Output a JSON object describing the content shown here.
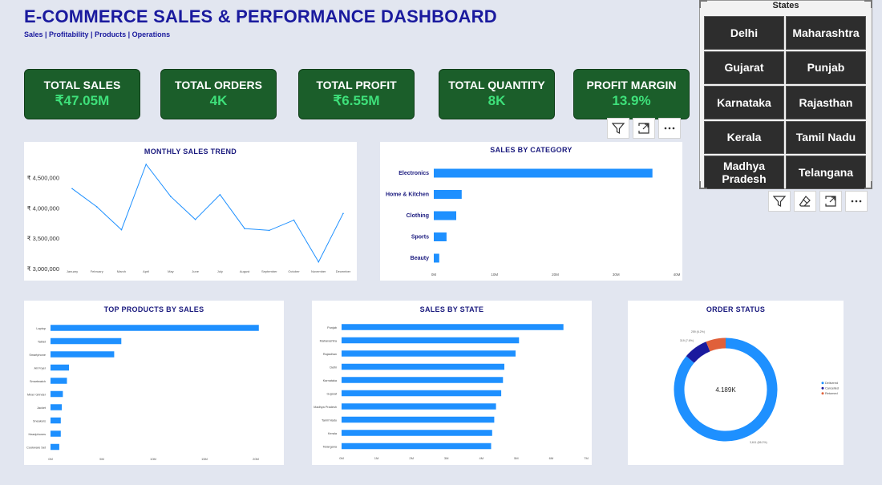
{
  "header": {
    "title": "E-COMMERCE SALES & PERFORMANCE DASHBOARD",
    "subtitle": "Sales | Profitability | Products | Operations"
  },
  "kpis": [
    {
      "label": "TOTAL SALES",
      "value": "₹47.05M"
    },
    {
      "label": "TOTAL ORDERS",
      "value": "4K"
    },
    {
      "label": "TOTAL PROFIT",
      "value": "₹6.55M"
    },
    {
      "label": "TOTAL QUANTITY",
      "value": "8K"
    },
    {
      "label": "PROFIT MARGIN",
      "value": "13.9%"
    }
  ],
  "slicer": {
    "title": "States",
    "items": [
      "Delhi",
      "Maharashtra",
      "Gujarat",
      "Punjab",
      "Karnataka",
      "Rajasthan",
      "Kerala",
      "Tamil Nadu",
      "Madhya Pradesh",
      "Telangana"
    ]
  },
  "icons": {
    "filter": "filter-icon",
    "focus": "focus-mode-icon",
    "more": "more-options-icon",
    "eraser": "clear-selections-icon"
  },
  "colors": {
    "kpi_bg": "#1b5e2a",
    "kpi_value": "#3ee07a",
    "bar": "#1e90ff",
    "title": "#1a1a9e",
    "delivered": "#1e90ff",
    "cancelled": "#1a1a9e",
    "returned": "#e0603a"
  },
  "chart_data": [
    {
      "type": "line",
      "title": "MONTHLY SALES TREND",
      "x": [
        "January",
        "February",
        "March",
        "April",
        "May",
        "June",
        "July",
        "August",
        "September",
        "October",
        "November",
        "December"
      ],
      "values": [
        4320000,
        4020000,
        3640000,
        4720000,
        4190000,
        3810000,
        4220000,
        3660000,
        3630000,
        3800000,
        3110000,
        3910000
      ],
      "yticks": [
        "₹ 3,000,000",
        "₹ 3,500,000",
        "₹ 4,000,000",
        "₹ 4,500,000"
      ],
      "ylim": [
        3000000,
        4800000
      ]
    },
    {
      "type": "bar",
      "orientation": "horizontal",
      "title": "SALES BY CATEGORY",
      "categories": [
        "Electronics",
        "Home & Kitchen",
        "Clothing",
        "Sports",
        "Beauty"
      ],
      "values": [
        36000000,
        4600000,
        3700000,
        2100000,
        900000
      ],
      "xticks": [
        "0M",
        "10M",
        "20M",
        "30M",
        "40M"
      ],
      "xlim": [
        0,
        40000000
      ]
    },
    {
      "type": "bar",
      "orientation": "horizontal",
      "title": "TOP PRODUCTS BY SALES",
      "categories": [
        "Laptop",
        "Tablet",
        "Smartphone",
        "Air Fryer",
        "Smartwatch",
        "Mixer Grinder",
        "Jacket",
        "Sneakers",
        "Headphones",
        "Cookware Set"
      ],
      "values": [
        20300000,
        6900000,
        6200000,
        1800000,
        1600000,
        1200000,
        1100000,
        1000000,
        1000000,
        850000
      ],
      "xticks": [
        "0M",
        "5M",
        "10M",
        "15M",
        "20M"
      ],
      "xlim": [
        0,
        20000000
      ]
    },
    {
      "type": "bar",
      "orientation": "horizontal",
      "title": "SALES BY STATE",
      "categories": [
        "Punjab",
        "Maharashtra",
        "Rajasthan",
        "Delhi",
        "Karnataka",
        "Gujarat",
        "Madhya Pradesh",
        "Tamil Nadu",
        "Kerala",
        "Telangana"
      ],
      "values": [
        6350000,
        5080000,
        4980000,
        4660000,
        4620000,
        4570000,
        4420000,
        4370000,
        4310000,
        4280000
      ],
      "xticks": [
        "0M",
        "1M",
        "2M",
        "3M",
        "4M",
        "5M",
        "6M",
        "7M"
      ],
      "xlim": [
        0,
        7000000
      ]
    },
    {
      "type": "pie",
      "title": "ORDER STATUS",
      "center_label": "4.189K",
      "categories": [
        "Delivered",
        "Cancelled",
        "Returned"
      ],
      "values": [
        3611,
        319,
        259
      ],
      "data_labels": [
        "3,611 (86.2%)",
        "319 (7.6%)",
        "259 (6.2%)"
      ],
      "legend": "right"
    }
  ]
}
